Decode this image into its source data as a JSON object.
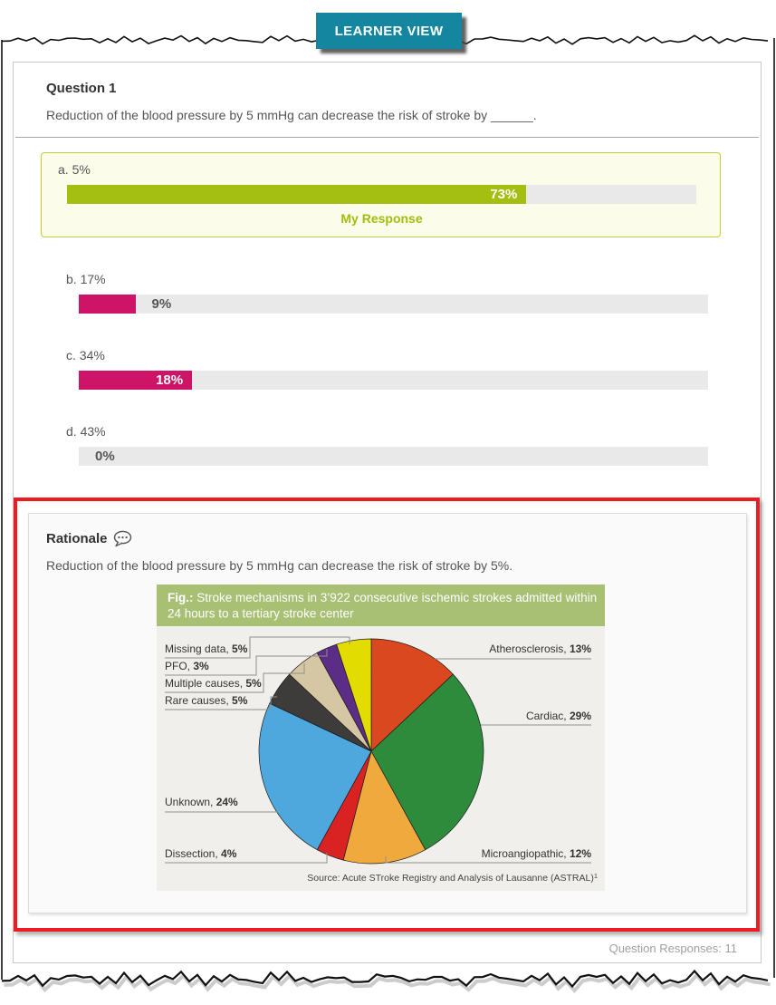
{
  "badge": {
    "label": "LEARNER VIEW"
  },
  "question": {
    "title": "Question 1",
    "text": "Reduction of the blood pressure by 5 mmHg can decrease the risk of stroke by ______.",
    "my_response_label": "My Response",
    "responses_label": "Question Responses: 11",
    "options": [
      {
        "letter": "a.",
        "text": "5%",
        "response_pct": 73,
        "response_label": "73%",
        "my_response": true
      },
      {
        "letter": "b.",
        "text": "17%",
        "response_pct": 9,
        "response_label": "9%",
        "my_response": false
      },
      {
        "letter": "c.",
        "text": "34%",
        "response_pct": 18,
        "response_label": "18%",
        "my_response": false
      },
      {
        "letter": "d.",
        "text": "43%",
        "response_pct": 0,
        "response_label": "0%",
        "my_response": false
      }
    ]
  },
  "rationale": {
    "title": "Rationale",
    "text": "Reduction of the blood pressure by 5 mmHg can decrease the risk of stroke by 5%."
  },
  "chart_data": {
    "type": "pie",
    "title": "Fig.: Stroke mechanisms in 3’922 consecutive ischemic strokes admitted within 24 hours to a tertiary stroke center",
    "title_prefix": "Fig.:",
    "title_lines": [
      " Stroke mechanisms in 3’922 consecutive ischemic strokes admitted within",
      "24 hours to a tertiary stroke center"
    ],
    "source_text": "Source: Acute STroke Registry and Analysis of Lausanne (ASTRAL)",
    "source_superscript": "1",
    "start_angle_deg": 0,
    "direction": "clockwise",
    "slices": [
      {
        "label": "Atherosclerosis",
        "value": 13,
        "color": "#d9481f"
      },
      {
        "label": "Cardiac",
        "value": 29,
        "color": "#2e8b3b"
      },
      {
        "label": "Microangiopathic",
        "value": 12,
        "color": "#f0a93c"
      },
      {
        "label": "Dissection",
        "value": 4,
        "color": "#d92323"
      },
      {
        "label": "Unknown",
        "value": 24,
        "color": "#4fa8dd"
      },
      {
        "label": "Rare causes",
        "value": 5,
        "color": "#3d3c3a"
      },
      {
        "label": "Multiple causes",
        "value": 5,
        "color": "#d5c6a4"
      },
      {
        "label": "PFO",
        "value": 3,
        "color": "#5b2d86"
      },
      {
        "label": "Missing data",
        "value": 5,
        "color": "#e3dc00"
      }
    ]
  },
  "colors": {
    "badge_teal": "#1486a0",
    "bar_green": "#a4be11",
    "bar_pink": "#ce1467",
    "bar_track": "#e9e9e9",
    "highlight_box_bg": "#fbfce9",
    "highlight_box_border": "#bfd035",
    "annotation_red": "#ed1c24",
    "chart_header_green": "#a8c073",
    "chart_bg": "#f0efec"
  }
}
